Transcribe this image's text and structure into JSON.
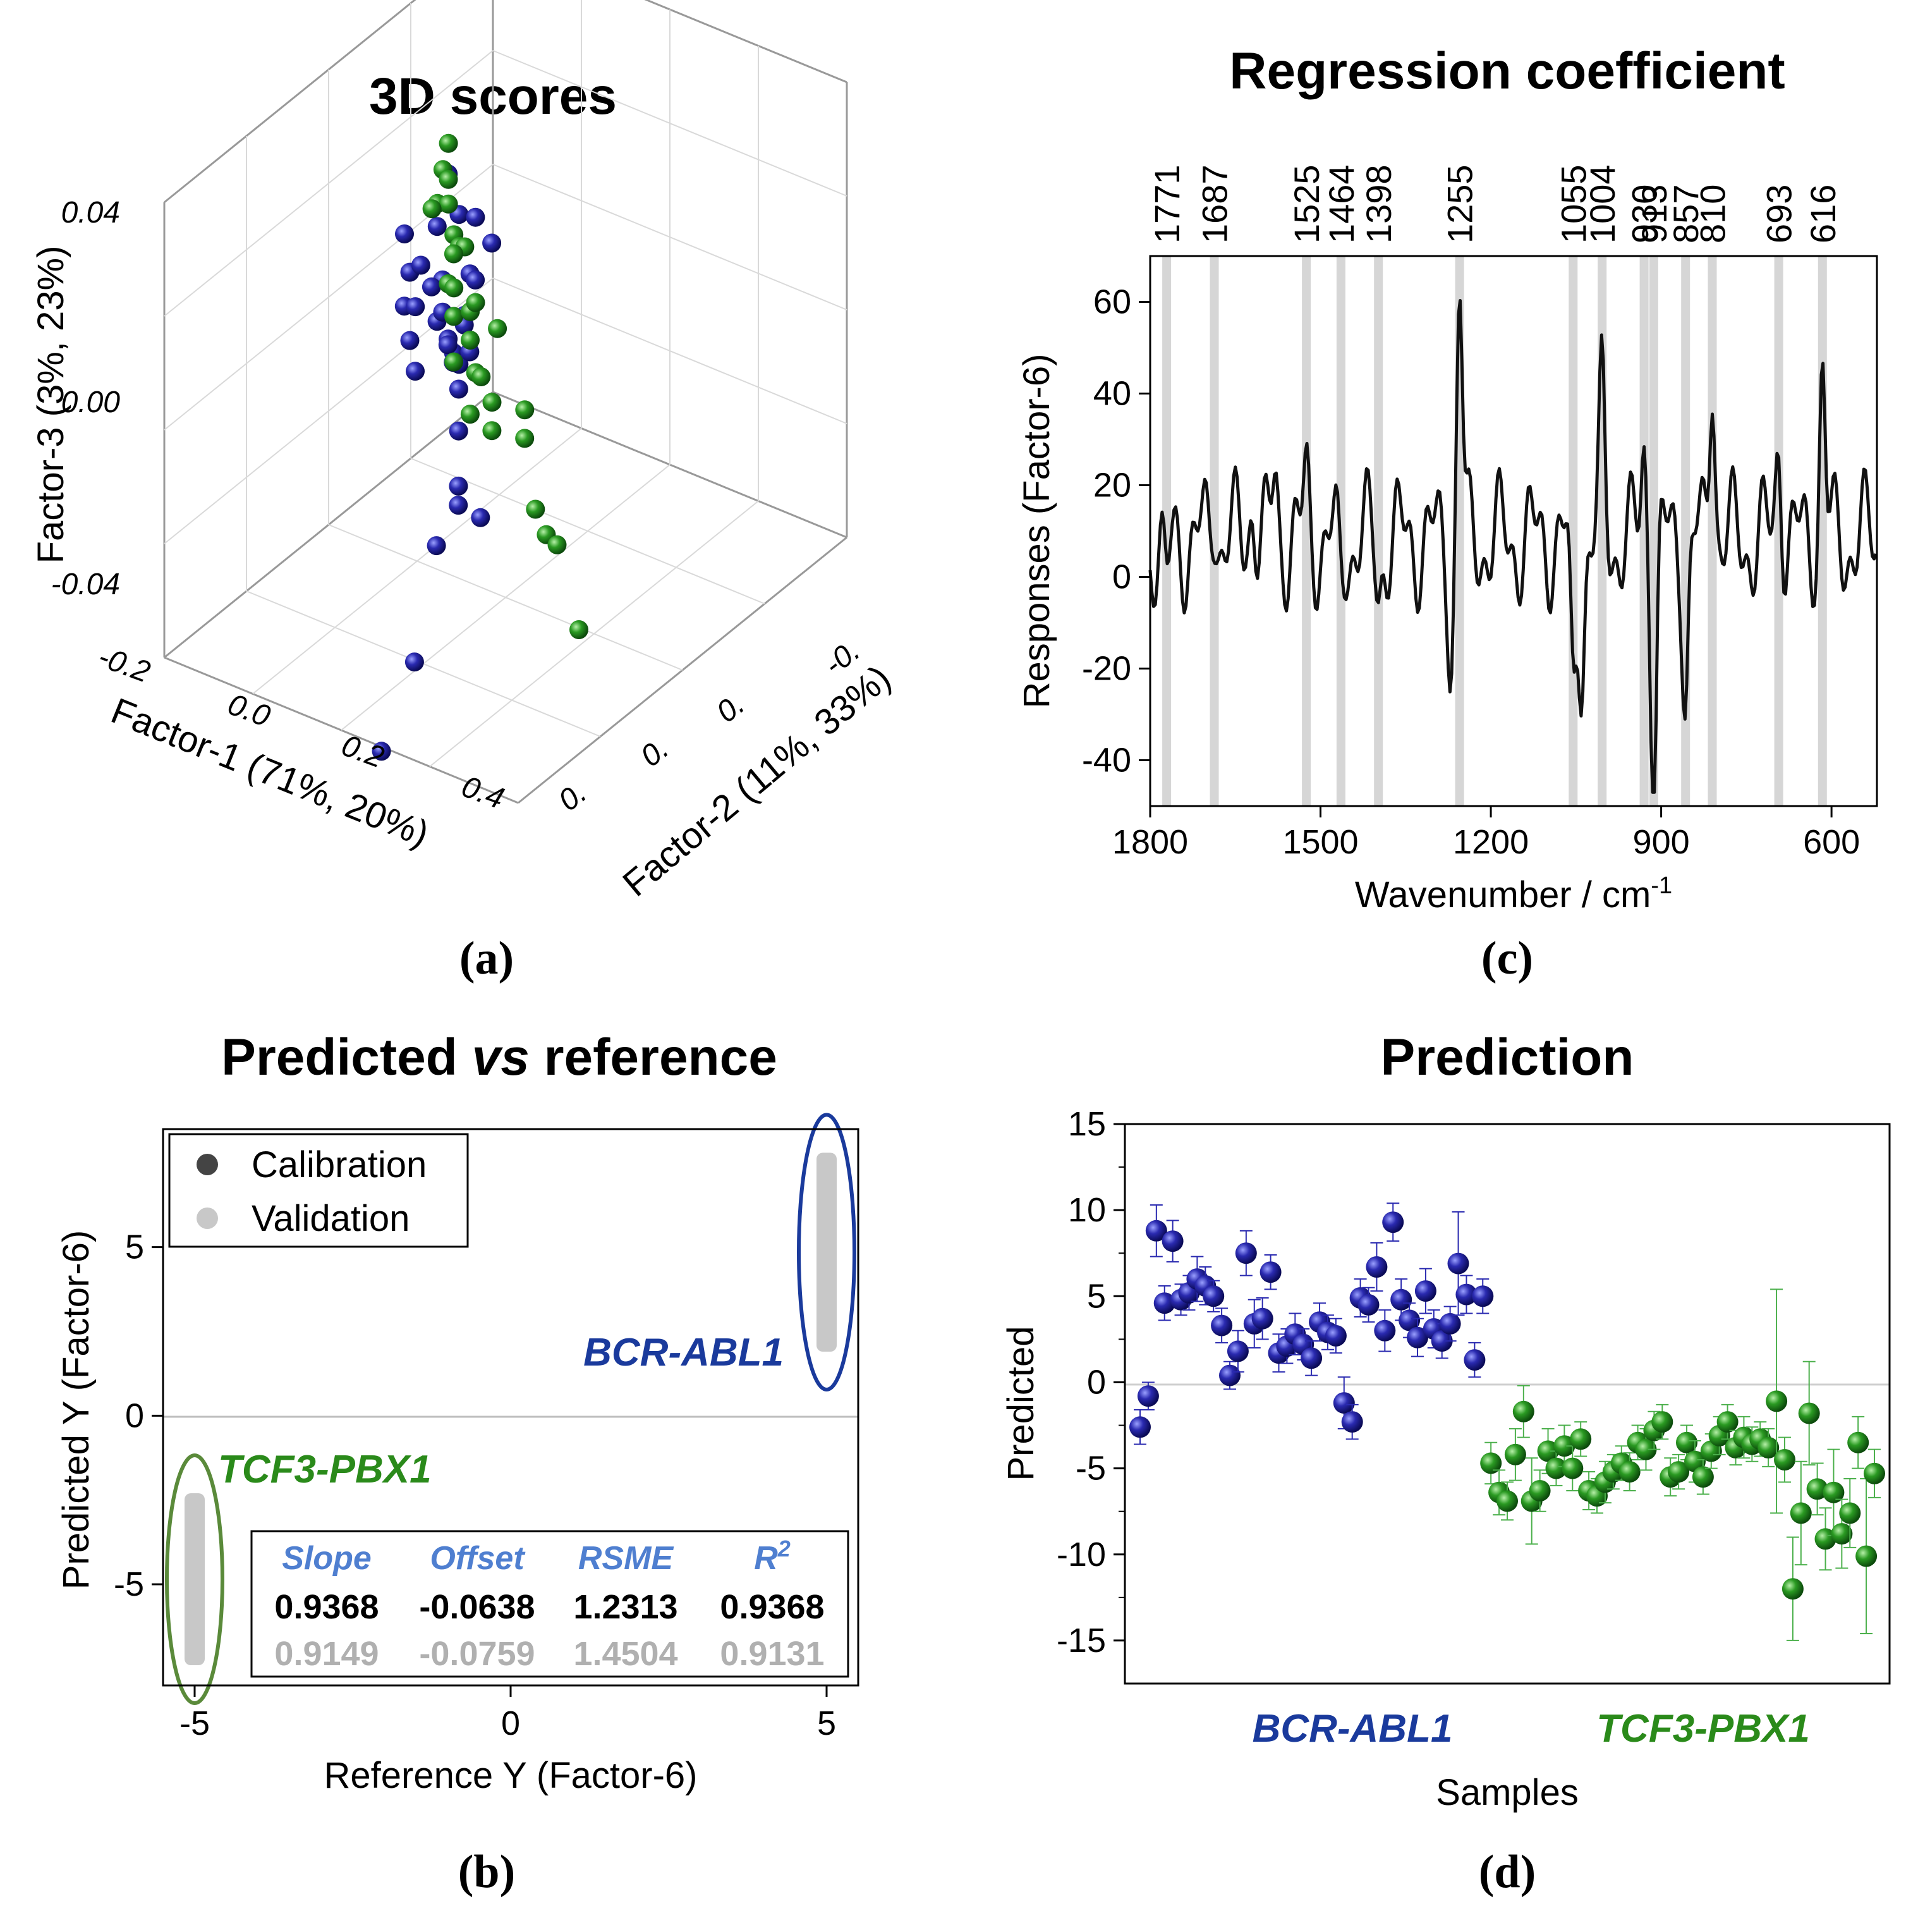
{
  "colors": {
    "blue": "#1a1a8c",
    "green": "#1f8a1f",
    "grey": "#c8c8c8",
    "dark": "#444444",
    "statHead": "#4f7fd0",
    "geneBlue": "#1a3a9c",
    "geneGreen": "#2a8a1a"
  },
  "panels": {
    "a": "(a)",
    "b": "(b)",
    "c": "(c)",
    "d": "(d)"
  },
  "chart_data": [
    {
      "id": "a",
      "type": "scatter",
      "title": "3D scores",
      "xlabel": "Factor-1 (71%, 20%)",
      "ylabel": "Factor-2 (11%, 33%)",
      "zlabel": "Factor-3 (3%, 23%)",
      "x_ticks": [
        "-0.2",
        "0.0",
        "0.2",
        "0.4"
      ],
      "y_ticks": [
        "-0.",
        "0.",
        "0.",
        "0."
      ],
      "z_ticks": [
        "0.04",
        "0.00",
        "-0.04"
      ],
      "series": [
        {
          "name": "BCR-ABL1",
          "points": [
            [
              0.08,
              -0.02,
              0.036
            ],
            [
              0.1,
              0.0,
              0.028
            ],
            [
              0.12,
              -0.01,
              0.03
            ],
            [
              0.06,
              0.01,
              0.026
            ],
            [
              0.09,
              0.02,
              0.02
            ],
            [
              0.11,
              -0.03,
              0.024
            ],
            [
              0.13,
              0.01,
              0.018
            ],
            [
              0.07,
              0.0,
              0.016
            ],
            [
              0.1,
              0.03,
              0.014
            ],
            [
              0.12,
              -0.02,
              0.012
            ],
            [
              0.14,
              0.02,
              0.01
            ],
            [
              0.08,
              0.01,
              0.008
            ],
            [
              0.11,
              0.0,
              0.006
            ],
            [
              0.13,
              -0.01,
              0.004
            ],
            [
              0.09,
              0.02,
              0.002
            ],
            [
              0.15,
              0.01,
              0.0
            ],
            [
              0.12,
              0.03,
              -0.002
            ],
            [
              0.1,
              -0.01,
              -0.004
            ],
            [
              0.14,
              0.0,
              -0.006
            ],
            [
              0.16,
              0.02,
              0.005
            ],
            [
              0.18,
              0.01,
              0.002
            ],
            [
              0.2,
              0.03,
              -0.002
            ],
            [
              0.24,
              0.05,
              -0.006
            ],
            [
              0.3,
              0.08,
              -0.01
            ],
            [
              0.34,
              0.1,
              -0.008
            ],
            [
              0.34,
              0.12,
              -0.014
            ],
            [
              0.26,
              0.04,
              -0.03
            ],
            [
              0.34,
              0.14,
              -0.04
            ],
            [
              0.4,
              0.2,
              -0.046
            ],
            [
              0.17,
              0.0,
              0.018
            ],
            [
              0.19,
              0.02,
              0.012
            ],
            [
              0.21,
              0.04,
              0.008
            ],
            [
              0.15,
              0.03,
              0.022
            ],
            [
              0.18,
              -0.01,
              0.026
            ]
          ]
        },
        {
          "name": "TCF3-PBX1",
          "points": [
            [
              0.0,
              -0.06,
              0.03
            ],
            [
              0.01,
              -0.05,
              0.026
            ],
            [
              0.02,
              -0.04,
              0.02
            ],
            [
              0.0,
              -0.06,
              0.014
            ],
            [
              0.03,
              -0.05,
              0.01
            ],
            [
              0.02,
              -0.06,
              0.004
            ],
            [
              0.04,
              -0.04,
              0.0
            ],
            [
              0.03,
              -0.05,
              -0.004
            ],
            [
              0.05,
              -0.04,
              -0.008
            ],
            [
              0.04,
              -0.06,
              -0.012
            ],
            [
              0.06,
              -0.05,
              -0.016
            ],
            [
              0.05,
              -0.04,
              -0.02
            ],
            [
              0.07,
              -0.05,
              -0.024
            ],
            [
              0.06,
              -0.06,
              -0.028
            ],
            [
              0.08,
              -0.04,
              -0.032
            ],
            [
              0.1,
              -0.05,
              -0.03
            ],
            [
              0.12,
              -0.04,
              -0.034
            ],
            [
              0.14,
              -0.06,
              -0.032
            ],
            [
              0.16,
              -0.05,
              -0.036
            ],
            [
              0.02,
              -0.05,
              0.024
            ],
            [
              0.01,
              -0.04,
              0.018
            ],
            [
              0.05,
              -0.05,
              0.008
            ],
            [
              0.07,
              -0.03,
              0.012
            ],
            [
              0.09,
              -0.04,
              -0.002
            ],
            [
              0.11,
              -0.05,
              -0.01
            ],
            [
              0.2,
              -0.04,
              -0.05
            ],
            [
              0.24,
              -0.03,
              -0.052
            ],
            [
              0.28,
              -0.02,
              -0.05
            ],
            [
              0.32,
              -0.02,
              -0.07
            ]
          ]
        }
      ]
    },
    {
      "id": "b",
      "type": "scatter",
      "title_parts": [
        "Predicted ",
        "vs",
        " reference"
      ],
      "xlabel": "Reference Y (Factor-6)",
      "ylabel": "Predicted Y (Factor-6)",
      "xlim": [
        -5.5,
        5.5
      ],
      "ylim": [
        -8,
        8.5
      ],
      "x_ticks": [
        -5,
        0,
        5
      ],
      "y_ticks": [
        5,
        0,
        -5
      ],
      "tick_labels_x": [
        "-5",
        "0",
        "5"
      ],
      "tick_labels_y": [
        "5",
        "0",
        "-5"
      ],
      "legend": [
        "Calibration",
        "Validation"
      ],
      "groups": [
        {
          "name": "BCR-ABL1",
          "reference": 5,
          "predicted_min": 1.9,
          "predicted_max": 7.8
        },
        {
          "name": "TCF3-PBX1",
          "reference": -5,
          "predicted_min": -7.4,
          "predicted_max": -2.3
        }
      ],
      "table": {
        "headers": [
          "Slope",
          "Offset",
          "RSME",
          "R2"
        ],
        "header_r2_base": "R",
        "header_r2_sup": "2",
        "calibration": [
          "0.9368",
          "-0.0638",
          "1.2313",
          "0.9368"
        ],
        "validation": [
          "0.9149",
          "-0.0759",
          "1.4504",
          "0.9131"
        ]
      }
    },
    {
      "id": "c",
      "type": "line",
      "title": "Regression coefficient",
      "xlabel_base": "Wavenumber / cm",
      "xlabel_sup": "-1",
      "ylabel": "Responses (Factor-6)",
      "xlim": [
        1800,
        520
      ],
      "ylim": [
        -50,
        70
      ],
      "x_ticks": [
        1800,
        1500,
        1200,
        900,
        600
      ],
      "tick_labels_x": [
        "1800",
        "1500",
        "1200",
        "900",
        "600"
      ],
      "y_ticks": [
        60,
        40,
        20,
        0,
        -20,
        -40
      ],
      "tick_labels_y": [
        "60",
        "40",
        "20",
        "0",
        "-20",
        "-40"
      ],
      "peaks": [
        1771,
        1687,
        1525,
        1464,
        1398,
        1255,
        1055,
        1004,
        930,
        913,
        857,
        810,
        693,
        616
      ],
      "peak_labels": [
        "1771",
        "1687",
        "1525",
        "1464",
        "1398",
        "1255",
        "1055",
        "1004",
        "930",
        "913",
        "857",
        "810",
        "693",
        "616"
      ]
    },
    {
      "id": "d",
      "type": "scatter",
      "title": "Prediction",
      "xlabel": "Samples",
      "ylabel": "Predicted",
      "ylim": [
        -17.5,
        15
      ],
      "y_ticks": [
        15,
        10,
        5,
        0,
        -5,
        -10,
        -15
      ],
      "tick_labels_y": [
        "15",
        "10",
        "5",
        "0",
        "-5",
        "-10",
        "-15"
      ],
      "groups": [
        "BCR-ABL1",
        "TCF3-PBX1"
      ],
      "series": [
        {
          "name": "BCR-ABL1",
          "values": [
            -2.6,
            -0.8,
            8.8,
            4.6,
            8.2,
            4.8,
            5.2,
            6.0,
            5.6,
            5.0,
            3.3,
            0.4,
            1.8,
            7.5,
            3.4,
            3.7,
            6.4,
            1.7,
            2.1,
            2.8,
            2.2,
            1.4,
            3.5,
            2.9,
            2.7,
            -1.2,
            -2.3,
            4.9,
            4.5,
            6.7,
            3.0,
            9.3,
            4.8,
            3.6,
            2.6,
            5.3,
            3.1,
            2.4,
            3.4,
            6.9,
            5.1,
            1.3,
            5.0
          ],
          "errors": [
            1.0,
            0.8,
            1.5,
            1.0,
            1.2,
            0.9,
            1.0,
            1.3,
            1.1,
            0.9,
            1.0,
            0.8,
            1.2,
            1.3,
            1.4,
            1.2,
            1.0,
            1.1,
            1.0,
            1.2,
            0.9,
            1.0,
            1.1,
            1.0,
            1.0,
            1.5,
            1.0,
            1.1,
            1.0,
            1.4,
            1.2,
            1.1,
            1.2,
            1.0,
            1.1,
            1.3,
            1.1,
            1.0,
            1.0,
            3.0,
            1.1,
            1.0,
            1.0
          ]
        },
        {
          "name": "TCF3-PBX1",
          "values": [
            -4.7,
            -6.4,
            -6.9,
            -4.2,
            -1.7,
            -6.9,
            -6.3,
            -4.0,
            -5.0,
            -3.7,
            -5.0,
            -3.3,
            -6.3,
            -6.6,
            -5.8,
            -5.2,
            -4.7,
            -5.2,
            -3.5,
            -3.9,
            -2.8,
            -2.3,
            -5.5,
            -5.2,
            -3.5,
            -4.6,
            -5.5,
            -4.0,
            -3.1,
            -2.3,
            -3.8,
            -3.2,
            -3.6,
            -3.3,
            -3.8,
            -1.1,
            -4.5,
            -12.0,
            -7.6,
            -1.8,
            -6.2,
            -9.1,
            -6.4,
            -8.8,
            -7.6,
            -3.5,
            -10.1,
            -5.3
          ],
          "errors": [
            1.2,
            1.3,
            1.1,
            1.5,
            1.5,
            2.5,
            1.2,
            1.3,
            1.0,
            1.2,
            1.3,
            1.0,
            1.1,
            1.0,
            1.2,
            1.0,
            1.0,
            1.1,
            1.0,
            1.2,
            1.1,
            1.0,
            1.1,
            1.0,
            1.0,
            1.2,
            1.0,
            1.0,
            1.1,
            1.0,
            1.0,
            1.2,
            1.0,
            1.0,
            1.1,
            6.5,
            1.3,
            3.0,
            3.0,
            3.0,
            1.5,
            1.8,
            2.5,
            2.0,
            2.0,
            1.5,
            4.5,
            1.4
          ]
        }
      ]
    }
  ]
}
